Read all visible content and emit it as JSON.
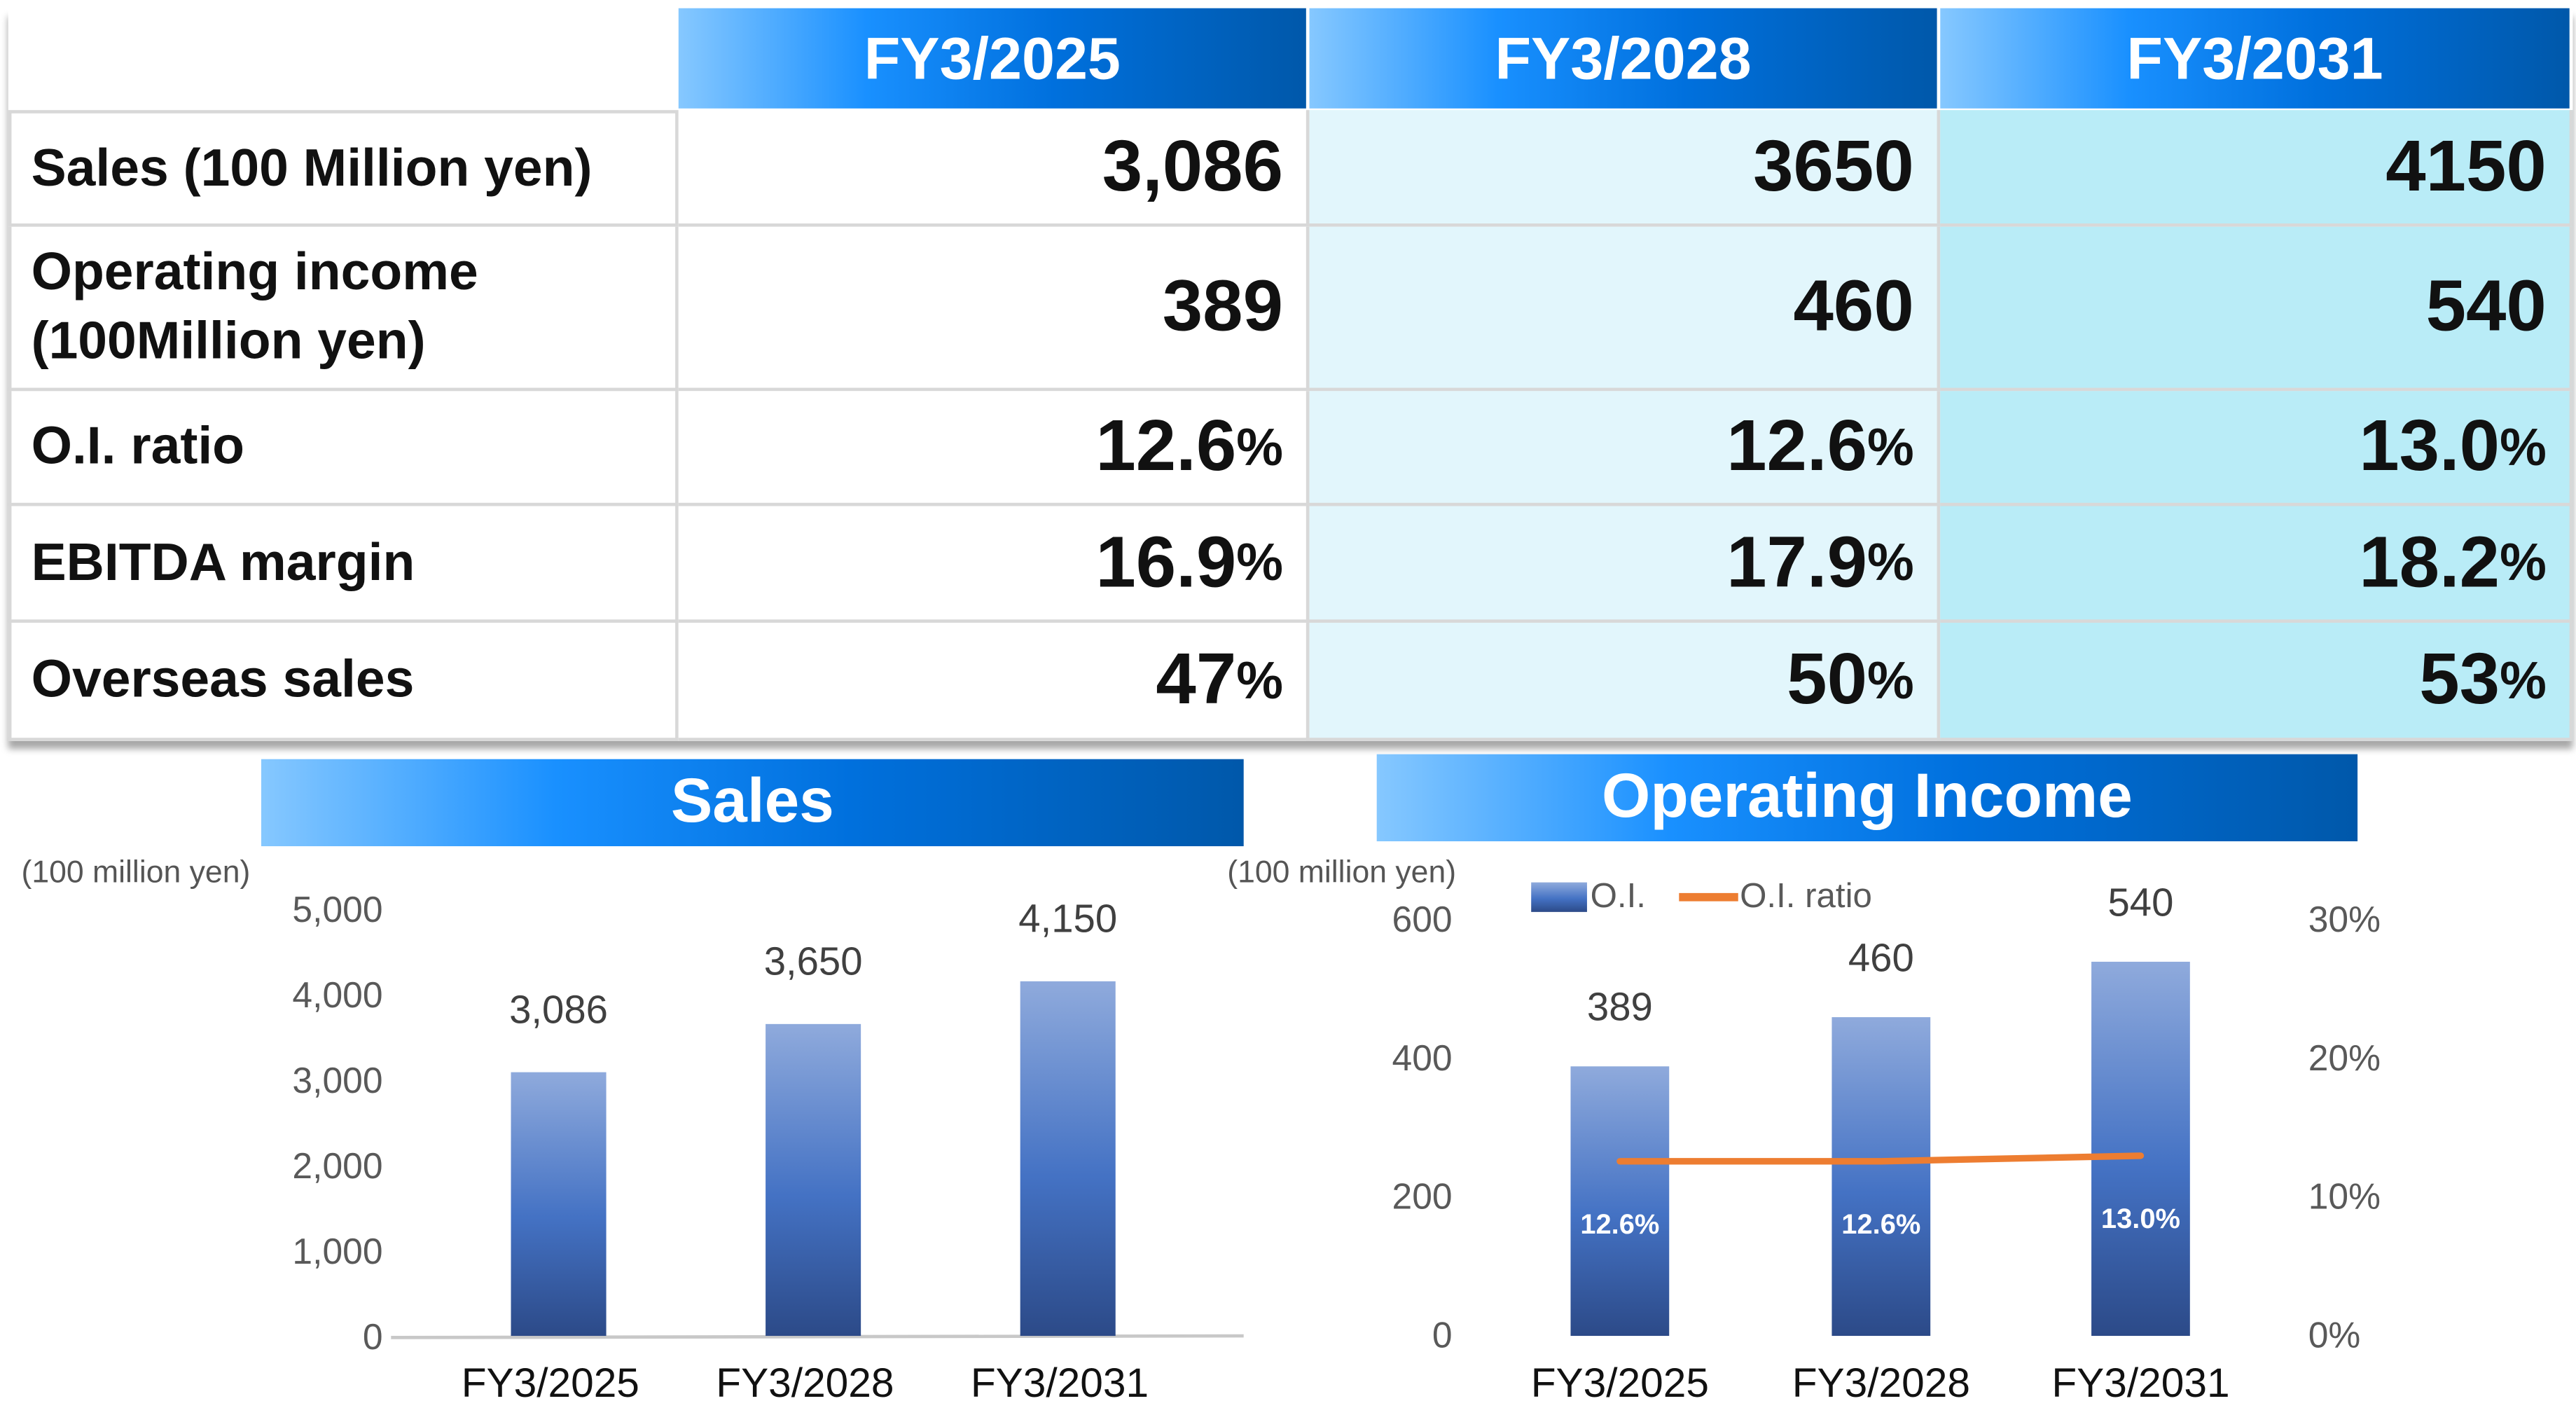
{
  "table": {
    "columns": [
      "FY3/2025",
      "FY3/2028",
      "FY3/2031"
    ],
    "rows": [
      {
        "label": "Sales (100 Million yen)",
        "values": [
          {
            "num": "3,086",
            "unit": ""
          },
          {
            "num": "3650",
            "unit": ""
          },
          {
            "num": "4150",
            "unit": ""
          }
        ]
      },
      {
        "label": "Operating income\n(100Million yen)",
        "values": [
          {
            "num": "389",
            "unit": ""
          },
          {
            "num": "460",
            "unit": ""
          },
          {
            "num": "540",
            "unit": ""
          }
        ]
      },
      {
        "label": "O.I. ratio",
        "values": [
          {
            "num": "12.6",
            "unit": "%"
          },
          {
            "num": "12.6",
            "unit": "%"
          },
          {
            "num": "13.0",
            "unit": "%"
          }
        ]
      },
      {
        "label": "EBITDA margin",
        "values": [
          {
            "num": "16.9",
            "unit": "%"
          },
          {
            "num": "17.9",
            "unit": "%"
          },
          {
            "num": "18.2",
            "unit": "%"
          }
        ]
      },
      {
        "label": "Overseas sales",
        "values": [
          {
            "num": "47",
            "unit": "%"
          },
          {
            "num": "50",
            "unit": "%"
          },
          {
            "num": "53",
            "unit": "%"
          }
        ]
      }
    ],
    "column_colors": [
      "#ffffff",
      "#e2f6fc",
      "#b9ecf7"
    ]
  },
  "chart_data": [
    {
      "type": "bar",
      "title": "Sales",
      "ylabel": "(100 million yen)",
      "categories": [
        "FY3/2025",
        "FY3/2028",
        "FY3/2031"
      ],
      "values": [
        3086,
        3650,
        4150
      ],
      "data_labels": [
        "3,086",
        "3,650",
        "4,150"
      ],
      "ylim": [
        0,
        5000
      ],
      "yticks": [
        "0",
        "1,000",
        "2,000",
        "3,000",
        "4,000",
        "5,000"
      ],
      "grid": false,
      "bar_color_top": "#8faadc",
      "bar_color_bottom": "#2f4f8f"
    },
    {
      "type": "bar+line",
      "title": "Operating Income",
      "ylabel": "(100 million yen)",
      "categories": [
        "FY3/2025",
        "FY3/2028",
        "FY3/2031"
      ],
      "series": [
        {
          "name": "O.I.",
          "type": "bar",
          "values": [
            389,
            460,
            540
          ],
          "data_labels": [
            "389",
            "460",
            "540"
          ],
          "axis": "left"
        },
        {
          "name": "O.I. ratio",
          "type": "line",
          "values": [
            12.6,
            12.6,
            13.0
          ],
          "data_labels": [
            "12.6%",
            "12.6%",
            "13.0%"
          ],
          "axis": "right",
          "color": "#ed7d31"
        }
      ],
      "ylim": [
        0,
        600
      ],
      "yticks": [
        "0",
        "200",
        "400",
        "600"
      ],
      "y2lim": [
        0,
        30
      ],
      "y2ticks": [
        "0%",
        "10%",
        "20%",
        "30%"
      ],
      "legend": "top-left",
      "grid": false
    }
  ]
}
